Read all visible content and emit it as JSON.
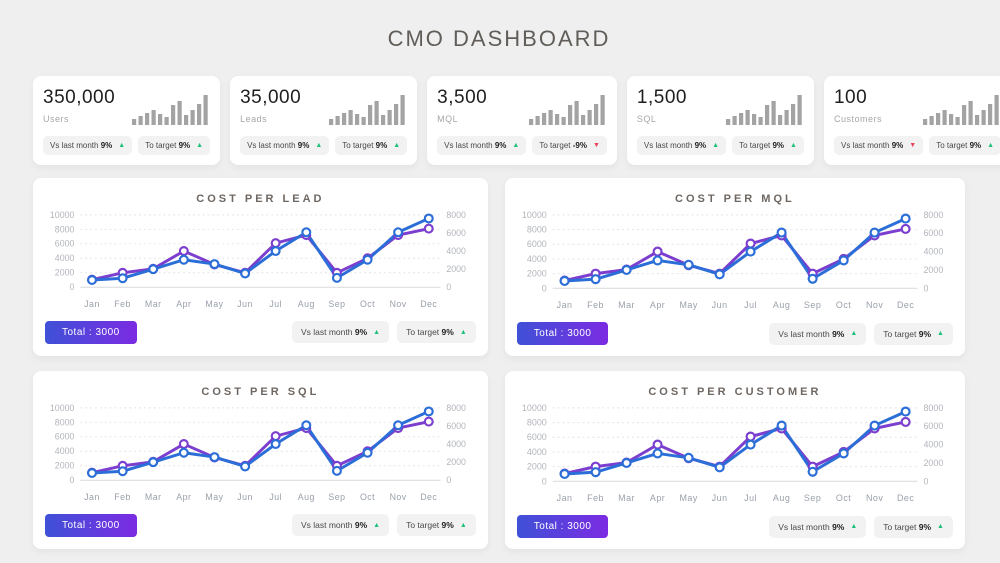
{
  "page": {
    "title": "CMO DASHBOARD"
  },
  "colors": {
    "background": "#efeff0",
    "card": "#ffffff",
    "blue_line": "#2b6ed7",
    "purple_line": "#7b3ecf",
    "green": "#21c07d",
    "red": "#e8435a",
    "badge_bg": "#f2f2f3",
    "gradient_left": "#3f51d7",
    "gradient_right": "#7b2be2",
    "spark_bar": "#a3a3a3",
    "grid_line": "#e4e4e7",
    "axis_text": "#b2b5bc",
    "month_text": "#9aa0ab"
  },
  "kpis": [
    {
      "value": "350,000",
      "label": "Users",
      "sparkline": [
        6,
        9,
        12,
        15,
        11,
        8,
        20,
        24,
        10,
        15,
        21,
        30
      ],
      "badges": [
        {
          "label": "Vs last month",
          "pct": "9%",
          "dir": "up"
        },
        {
          "label": "To target",
          "pct": "9%",
          "dir": "up"
        }
      ]
    },
    {
      "value": "35,000",
      "label": "Leads",
      "sparkline": [
        6,
        9,
        12,
        15,
        11,
        8,
        20,
        24,
        10,
        15,
        21,
        30
      ],
      "badges": [
        {
          "label": "Vs last month",
          "pct": "9%",
          "dir": "up"
        },
        {
          "label": "To target",
          "pct": "9%",
          "dir": "up"
        }
      ]
    },
    {
      "value": "3,500",
      "label": "MQL",
      "sparkline": [
        6,
        9,
        12,
        15,
        11,
        8,
        20,
        24,
        10,
        15,
        21,
        30
      ],
      "badges": [
        {
          "label": "Vs last month",
          "pct": "9%",
          "dir": "up"
        },
        {
          "label": "To target",
          "pct": "-9%",
          "dir": "down"
        }
      ]
    },
    {
      "value": "1,500",
      "label": "SQL",
      "sparkline": [
        6,
        9,
        12,
        15,
        11,
        8,
        20,
        24,
        10,
        15,
        21,
        30
      ],
      "badges": [
        {
          "label": "Vs last month",
          "pct": "9%",
          "dir": "up"
        },
        {
          "label": "To target",
          "pct": "9%",
          "dir": "up"
        }
      ]
    },
    {
      "value": "100",
      "label": "Customers",
      "sparkline": [
        6,
        9,
        12,
        15,
        11,
        8,
        20,
        24,
        10,
        15,
        21,
        30
      ],
      "badges": [
        {
          "label": "Vs last month",
          "pct": "9%",
          "dir": "down"
        },
        {
          "label": "To target",
          "pct": "9%",
          "dir": "up"
        }
      ]
    }
  ],
  "charts": [
    {
      "title": "COST PER LEAD",
      "total_label": "Total : 3000",
      "badges": [
        {
          "label": "Vs last month",
          "pct": "9%",
          "dir": "up"
        },
        {
          "label": "To target",
          "pct": "9%",
          "dir": "up"
        }
      ]
    },
    {
      "title": "COST PER MQL",
      "total_label": "Total : 3000",
      "badges": [
        {
          "label": "Vs last month",
          "pct": "9%",
          "dir": "up"
        },
        {
          "label": "To target",
          "pct": "9%",
          "dir": "up"
        }
      ]
    },
    {
      "title": "COST PER SQL",
      "total_label": "Total : 3000",
      "badges": [
        {
          "label": "Vs last month",
          "pct": "9%",
          "dir": "up"
        },
        {
          "label": "To target",
          "pct": "9%",
          "dir": "up"
        }
      ]
    },
    {
      "title": "COST PER CUSTOMER",
      "total_label": "Total : 3000",
      "badges": [
        {
          "label": "Vs last month",
          "pct": "9%",
          "dir": "up"
        },
        {
          "label": "To target",
          "pct": "9%",
          "dir": "up"
        }
      ]
    }
  ],
  "chart_data": [
    {
      "type": "line",
      "title": "COST PER LEAD",
      "x": [
        "Jan",
        "Feb",
        "Mar",
        "Apr",
        "May",
        "Jun",
        "Jul",
        "Aug",
        "Sep",
        "Oct",
        "Nov",
        "Dec"
      ],
      "series": [
        {
          "name": "blue",
          "color": "#2b6ed7",
          "values": [
            1000,
            1250,
            2500,
            3800,
            3200,
            1900,
            5000,
            7600,
            1300,
            3800,
            7600,
            9500
          ]
        },
        {
          "name": "purple",
          "color": "#7b3ecf",
          "values": [
            1050,
            2000,
            2550,
            5000,
            3150,
            2000,
            6100,
            7200,
            2000,
            4000,
            7200,
            8100
          ]
        }
      ],
      "left_axis": {
        "range": [
          0,
          10000
        ],
        "ticks": [
          0,
          2000,
          4000,
          6000,
          8000,
          10000
        ]
      },
      "right_axis": {
        "range": [
          0,
          8000
        ],
        "ticks": [
          0,
          2000,
          4000,
          6000,
          8000
        ]
      },
      "grid": "dashed-horizontal",
      "legend": "none"
    },
    {
      "type": "line",
      "title": "COST PER MQL",
      "x": [
        "Jan",
        "Feb",
        "Mar",
        "Apr",
        "May",
        "Jun",
        "Jul",
        "Aug",
        "Sep",
        "Oct",
        "Nov",
        "Dec"
      ],
      "series": [
        {
          "name": "blue",
          "color": "#2b6ed7",
          "values": [
            1000,
            1250,
            2500,
            3800,
            3200,
            1900,
            5000,
            7600,
            1300,
            3800,
            7600,
            9500
          ]
        },
        {
          "name": "purple",
          "color": "#7b3ecf",
          "values": [
            1050,
            2000,
            2550,
            5000,
            3150,
            2000,
            6100,
            7200,
            2000,
            4000,
            7200,
            8100
          ]
        }
      ],
      "left_axis": {
        "range": [
          0,
          10000
        ],
        "ticks": [
          0,
          2000,
          4000,
          6000,
          8000,
          10000
        ]
      },
      "right_axis": {
        "range": [
          0,
          8000
        ],
        "ticks": [
          0,
          2000,
          4000,
          6000,
          8000
        ]
      },
      "grid": "dashed-horizontal",
      "legend": "none"
    },
    {
      "type": "line",
      "title": "COST PER SQL",
      "x": [
        "Jan",
        "Feb",
        "Mar",
        "Apr",
        "May",
        "Jun",
        "Jul",
        "Aug",
        "Sep",
        "Oct",
        "Nov",
        "Dec"
      ],
      "series": [
        {
          "name": "blue",
          "color": "#2b6ed7",
          "values": [
            1000,
            1250,
            2500,
            3800,
            3200,
            1900,
            5000,
            7600,
            1300,
            3800,
            7600,
            9500
          ]
        },
        {
          "name": "purple",
          "color": "#7b3ecf",
          "values": [
            1050,
            2000,
            2550,
            5000,
            3150,
            2000,
            6100,
            7200,
            2000,
            4000,
            7200,
            8100
          ]
        }
      ],
      "left_axis": {
        "range": [
          0,
          10000
        ],
        "ticks": [
          0,
          2000,
          4000,
          6000,
          8000,
          10000
        ]
      },
      "right_axis": {
        "range": [
          0,
          8000
        ],
        "ticks": [
          0,
          2000,
          4000,
          6000,
          8000
        ]
      },
      "grid": "dashed-horizontal",
      "legend": "none"
    },
    {
      "type": "line",
      "title": "COST PER CUSTOMER",
      "x": [
        "Jan",
        "Feb",
        "Mar",
        "Apr",
        "May",
        "Jun",
        "Jul",
        "Aug",
        "Sep",
        "Oct",
        "Nov",
        "Dec"
      ],
      "series": [
        {
          "name": "blue",
          "color": "#2b6ed7",
          "values": [
            1000,
            1250,
            2500,
            3800,
            3200,
            1900,
            5000,
            7600,
            1300,
            3800,
            7600,
            9500
          ]
        },
        {
          "name": "purple",
          "color": "#7b3ecf",
          "values": [
            1050,
            2000,
            2550,
            5000,
            3150,
            2000,
            6100,
            7200,
            2000,
            4000,
            7200,
            8100
          ]
        }
      ],
      "left_axis": {
        "range": [
          0,
          10000
        ],
        "ticks": [
          0,
          2000,
          4000,
          6000,
          8000,
          10000
        ]
      },
      "right_axis": {
        "range": [
          0,
          8000
        ],
        "ticks": [
          0,
          2000,
          4000,
          6000,
          8000
        ]
      },
      "grid": "dashed-horizontal",
      "legend": "none"
    }
  ]
}
